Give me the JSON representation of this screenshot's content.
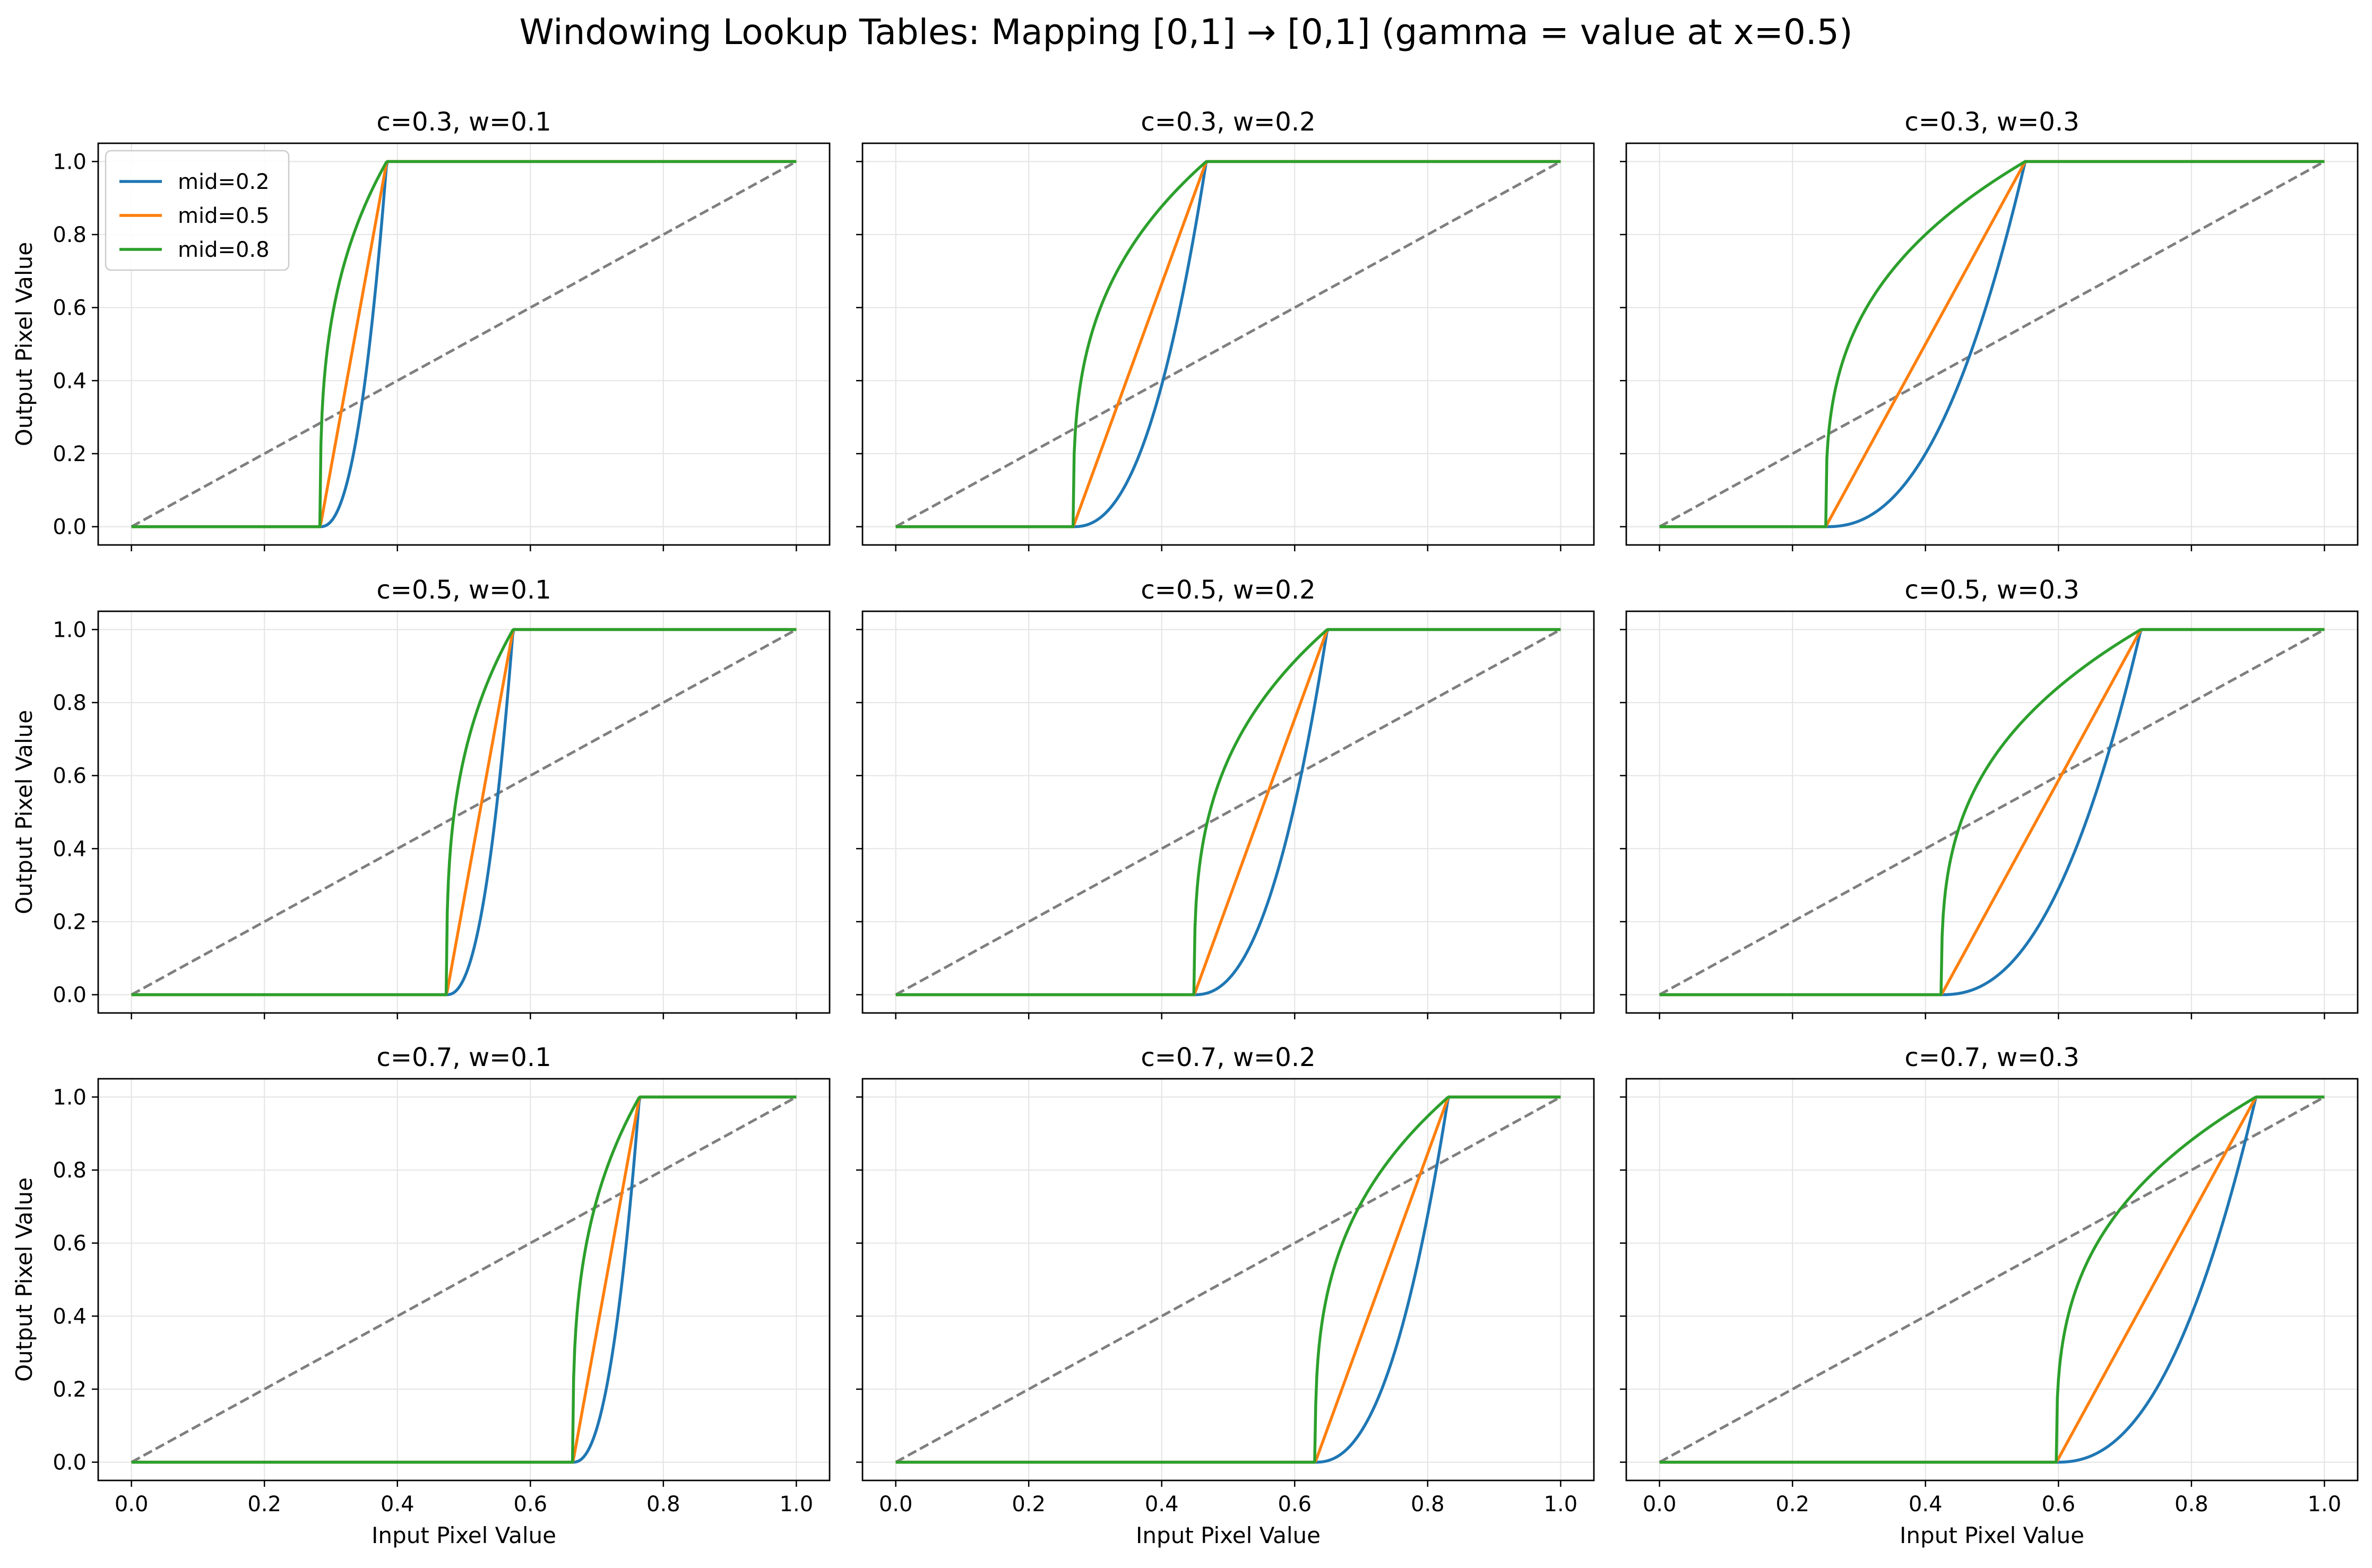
{
  "figure": {
    "title": "Windowing Lookup Tables: Mapping [0,1] → [0,1] (gamma = value at x=0.5)"
  },
  "colors": {
    "mid=0.2": "#1f77b4",
    "mid=0.5": "#ff7f0e",
    "mid=0.8": "#2ca02c",
    "identity": "#7f7f7f",
    "grid": "#e6e6e6"
  },
  "chart_data": {
    "type": "line",
    "layout": "3x3 grid",
    "shared_x_axis": true,
    "shared_y_axis": true,
    "xlabel": "Input Pixel Value",
    "ylabel": "Output Pixel Value",
    "xlim": [
      -0.05,
      1.05
    ],
    "ylim": [
      -0.05,
      1.05
    ],
    "xticks": [
      "0.0",
      "0.2",
      "0.4",
      "0.6",
      "0.8",
      "1.0"
    ],
    "yticks": [
      "0.0",
      "0.2",
      "0.4",
      "0.6",
      "0.8",
      "1.0"
    ],
    "grid": true,
    "legend": {
      "placement": "upper left",
      "panel": 0,
      "entries": [
        "mid=0.2",
        "mid=0.5",
        "mid=0.8"
      ]
    },
    "series_definitions": [
      {
        "name": "mid=0.2",
        "gamma": 0.2
      },
      {
        "name": "mid=0.5",
        "gamma": 0.5
      },
      {
        "name": "mid=0.8",
        "gamma": 0.8
      }
    ],
    "identity_line": {
      "style": "dashed",
      "from": [
        0,
        0
      ],
      "to": [
        1,
        1
      ]
    },
    "panels": [
      {
        "title": "c=0.3, w=0.1",
        "c": 0.3,
        "w": 0.1,
        "window": [
          0.284,
          0.384
        ]
      },
      {
        "title": "c=0.3, w=0.2",
        "c": 0.3,
        "w": 0.2,
        "window": [
          0.267,
          0.467
        ]
      },
      {
        "title": "c=0.3, w=0.3",
        "c": 0.3,
        "w": 0.3,
        "window": [
          0.25,
          0.55
        ]
      },
      {
        "title": "c=0.5, w=0.1",
        "c": 0.5,
        "w": 0.1,
        "window": [
          0.474,
          0.574
        ]
      },
      {
        "title": "c=0.5, w=0.2",
        "c": 0.5,
        "w": 0.2,
        "window": [
          0.449,
          0.649
        ]
      },
      {
        "title": "c=0.5, w=0.3",
        "c": 0.5,
        "w": 0.3,
        "window": [
          0.424,
          0.724
        ]
      },
      {
        "title": "c=0.7, w=0.1",
        "c": 0.7,
        "w": 0.1,
        "window": [
          0.664,
          0.764
        ]
      },
      {
        "title": "c=0.7, w=0.2",
        "c": 0.7,
        "w": 0.2,
        "window": [
          0.631,
          0.831
        ]
      },
      {
        "title": "c=0.7, w=0.3",
        "c": 0.7,
        "w": 0.3,
        "window": [
          0.597,
          0.897
        ]
      }
    ]
  }
}
